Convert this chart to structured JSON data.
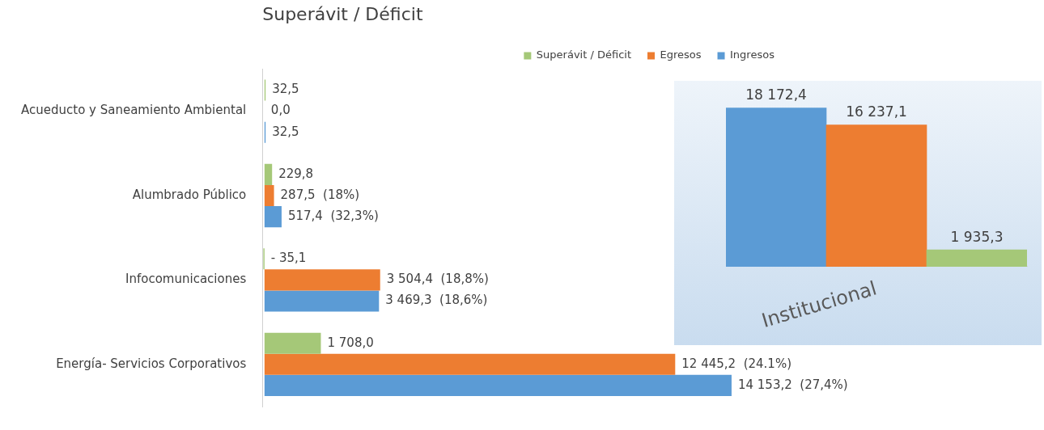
{
  "chart_data": [
    {
      "type": "bar",
      "orientation": "horizontal",
      "title": "Superávit / Déficit",
      "legend": "top",
      "grid": false,
      "tick_labels": "y",
      "categories": [
        "Acueducto y Saneamiento Ambiental",
        "Alumbrado Público",
        "Infocomunicaciones",
        "Energía- Servicios Corporativos"
      ],
      "series": [
        {
          "name": "Superávit / Déficit",
          "color": "#a5c878",
          "values": [
            32.5,
            229.8,
            -35.1,
            1708.0
          ],
          "value_labels": [
            "32,5",
            "229,8",
            "- 35,1",
            "1 708,0"
          ]
        },
        {
          "name": "Egresos",
          "color": "#ed7d31",
          "values": [
            0.0,
            287.5,
            3504.4,
            12445.2
          ],
          "value_labels": [
            "0,0",
            "287,5  (18%)",
            "3 504,4  (18,8%)",
            "12 445,2  (24.1%)"
          ]
        },
        {
          "name": "Ingresos",
          "color": "#5b9bd5",
          "values": [
            32.5,
            517.4,
            3469.3,
            14153.2
          ],
          "value_labels": [
            "32,5",
            "517,4  (32,3%)",
            "3 469,3  (18,6%)",
            "14 153,2  (27,4%)"
          ]
        }
      ]
    },
    {
      "type": "bar",
      "grid": false,
      "tick_labels": "x",
      "categories": [
        null,
        "Institucional",
        null
      ],
      "series": [
        {
          "colors": [
            "#5b9bd5",
            "#ed7d31",
            "#a5c878"
          ],
          "values": [
            18172.4,
            16237.1,
            1935.3
          ],
          "value_labels": [
            "18 172,4",
            "16 237,1",
            "1 935,3"
          ]
        }
      ]
    }
  ]
}
